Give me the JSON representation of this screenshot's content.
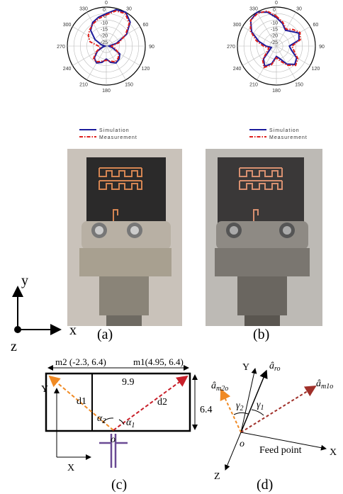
{
  "chart_data": [
    {
      "type": "polar",
      "x": [
        0,
        15,
        30,
        45,
        60,
        75,
        90,
        105,
        120,
        135,
        150,
        165,
        180,
        195,
        210,
        225,
        240,
        255,
        270,
        285,
        300,
        315,
        330,
        345
      ],
      "xticks": [
        0,
        30,
        60,
        90,
        120,
        150,
        180,
        210,
        240,
        270,
        300,
        330
      ],
      "ylim": [
        -30,
        0
      ],
      "yticks": [
        0,
        -5,
        -10,
        -15,
        -20,
        -25
      ],
      "series": [
        {
          "name": "Simulation",
          "color": "#1c1c9c",
          "dash": "solid",
          "values": [
            -5,
            -1,
            0,
            -4,
            -12,
            -22,
            -28,
            -25,
            -18,
            -16,
            -15,
            -17,
            -20,
            -17,
            -15,
            -17,
            -22,
            -27,
            -29,
            -26,
            -20,
            -13,
            -9,
            -7
          ]
        },
        {
          "name": "Measurement",
          "color": "#e0201c",
          "dash": "dashdot",
          "values": [
            -6,
            -2,
            -1,
            -5,
            -13,
            -20,
            -26,
            -23,
            -19,
            -17,
            -16,
            -18,
            -19,
            -18,
            -16,
            -16,
            -21,
            -25,
            -24,
            -17,
            -14,
            -12,
            -10,
            -8
          ]
        }
      ]
    },
    {
      "type": "polar",
      "x": [
        0,
        15,
        30,
        45,
        60,
        75,
        90,
        105,
        120,
        135,
        150,
        165,
        180,
        195,
        210,
        225,
        240,
        255,
        270,
        285,
        300,
        315,
        330,
        345
      ],
      "xticks": [
        0,
        30,
        60,
        90,
        120,
        150,
        180,
        210,
        240,
        270,
        300,
        330
      ],
      "ylim": [
        -30,
        0
      ],
      "yticks": [
        0,
        -5,
        -10,
        -15,
        -20,
        -25
      ],
      "series": [
        {
          "name": "Simulation",
          "color": "#1c1c9c",
          "dash": "solid",
          "values": [
            -8,
            -12,
            -16,
            -14,
            -10,
            -12,
            -20,
            -18,
            -12,
            -10,
            -14,
            -20,
            -22,
            -16,
            -12,
            -16,
            -24,
            -26,
            -22,
            -16,
            -8,
            -2,
            0,
            -3
          ]
        },
        {
          "name": "Measurement",
          "color": "#e0201c",
          "dash": "dashdot",
          "values": [
            -7,
            -11,
            -15,
            -12,
            -9,
            -11,
            -18,
            -16,
            -11,
            -9,
            -13,
            -18,
            -21,
            -15,
            -11,
            -15,
            -22,
            -24,
            -20,
            -14,
            -7,
            -2,
            -1,
            -2
          ]
        }
      ]
    }
  ],
  "panels": {
    "a": "(a)",
    "b": "(b)",
    "c": "(c)",
    "d": "(d)"
  },
  "axes": {
    "y": "y",
    "x": "x",
    "z": "z"
  },
  "diagram_c": {
    "m2": "m2 (-2.3, 6.4)",
    "m1": "m1(4.95, 6.4)",
    "width": "9.9",
    "height": "6.4",
    "d1": "d1",
    "d2": "d2",
    "Y": "Y",
    "X": "X",
    "o": "o",
    "alpha2": {
      "base": "α",
      "sub": "2"
    },
    "alpha1": {
      "base": "α",
      "sub": "1"
    }
  },
  "diagram_d": {
    "Y": "Y",
    "X": "X",
    "Z": "Z",
    "o": "o",
    "feed": "Feed point",
    "aro": {
      "base": "â",
      "sub": "ro"
    },
    "am2o": {
      "base": "â",
      "sub": "m2o"
    },
    "am1o": {
      "base": "â",
      "sub": "m1o"
    },
    "gamma2": {
      "base": "γ",
      "sub": "2"
    },
    "gamma1": {
      "base": "γ",
      "sub": "1"
    }
  }
}
